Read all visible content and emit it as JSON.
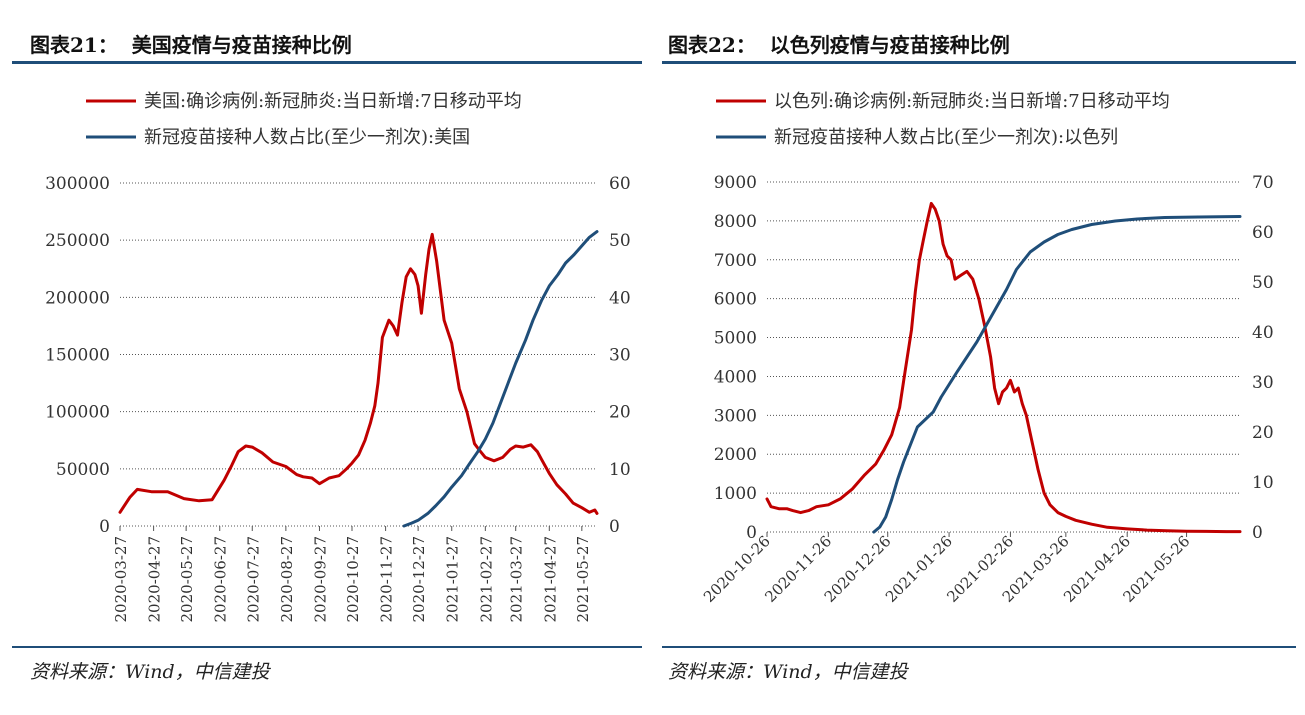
{
  "colors": {
    "case_line": "#c00000",
    "vaccine_line": "#1f4e79",
    "rule": "#1f4e79"
  },
  "left": {
    "title": "图表21：  美国疫情与疫苗接种比例",
    "source": "资料来源：Wind，中信建投",
    "chart_data": {
      "type": "line",
      "title": "图表21：  美国疫情与疫苗接种比例",
      "legend_position": "top",
      "grid": "dotted horizontal",
      "ylim_left": [
        0,
        300000
      ],
      "ylim_right": [
        0,
        60
      ],
      "y_ticks_left": [
        "0",
        "50000",
        "100000",
        "150000",
        "200000",
        "250000",
        "300000"
      ],
      "y_ticks_right": [
        "0",
        "10",
        "20",
        "30",
        "40",
        "50",
        "60"
      ],
      "x_ticks": [
        "2020-03-27",
        "2020-04-27",
        "2020-05-27",
        "2020-06-27",
        "2020-07-27",
        "2020-08-27",
        "2020-09-27",
        "2020-10-27",
        "2020-11-27",
        "2020-12-27",
        "2021-01-27",
        "2021-02-27",
        "2021-03-27",
        "2021-04-27",
        "2021-05-27"
      ],
      "x_range": [
        "2020-03-27",
        "2021-06-10"
      ],
      "series": [
        {
          "name": "美国:确诊病例:新冠肺炎:当日新增:7日移动平均",
          "axis": "left",
          "color": "#c00000",
          "x": [
            "2020-03-27",
            "2020-04-05",
            "2020-04-12",
            "2020-04-25",
            "2020-05-10",
            "2020-05-25",
            "2020-06-08",
            "2020-06-20",
            "2020-07-01",
            "2020-07-08",
            "2020-07-14",
            "2020-07-21",
            "2020-07-27",
            "2020-08-05",
            "2020-08-15",
            "2020-08-27",
            "2020-09-06",
            "2020-09-12",
            "2020-09-20",
            "2020-09-27",
            "2020-10-06",
            "2020-10-15",
            "2020-10-22",
            "2020-10-27",
            "2020-11-02",
            "2020-11-08",
            "2020-11-13",
            "2020-11-17",
            "2020-11-20",
            "2020-11-22",
            "2020-11-24",
            "2020-11-30",
            "2020-12-04",
            "2020-12-08",
            "2020-12-12",
            "2020-12-16",
            "2020-12-20",
            "2020-12-24",
            "2020-12-27",
            "2020-12-30",
            "2021-01-03",
            "2021-01-06",
            "2021-01-09",
            "2021-01-13",
            "2021-01-20",
            "2021-01-27",
            "2021-02-03",
            "2021-02-10",
            "2021-02-17",
            "2021-02-21",
            "2021-02-27",
            "2021-03-07",
            "2021-03-15",
            "2021-03-22",
            "2021-03-27",
            "2021-04-03",
            "2021-04-10",
            "2021-04-16",
            "2021-04-20",
            "2021-04-27",
            "2021-05-04",
            "2021-05-12",
            "2021-05-19",
            "2021-05-27",
            "2021-06-03",
            "2021-06-08",
            "2021-06-10"
          ],
          "values": [
            12000,
            25000,
            32000,
            30000,
            30000,
            24000,
            22000,
            23000,
            40000,
            53000,
            65000,
            70000,
            69000,
            64000,
            56000,
            52000,
            45000,
            43000,
            42000,
            37000,
            42000,
            44000,
            50000,
            55000,
            62000,
            75000,
            90000,
            105000,
            125000,
            145000,
            165000,
            180000,
            175000,
            167000,
            195000,
            218000,
            225000,
            220000,
            210000,
            186000,
            220000,
            242000,
            255000,
            232000,
            180000,
            160000,
            120000,
            100000,
            72000,
            67000,
            60000,
            57000,
            60000,
            67000,
            70000,
            69000,
            71000,
            65000,
            58000,
            46000,
            36000,
            28000,
            20000,
            16000,
            12000,
            14000,
            11000
          ]
        },
        {
          "name": "新冠疫苗接种人数占比(至少一剂次):美国",
          "axis": "right",
          "color": "#1f4e79",
          "x": [
            "2020-12-14",
            "2020-12-21",
            "2020-12-27",
            "2021-01-05",
            "2021-01-12",
            "2021-01-20",
            "2021-01-27",
            "2021-02-05",
            "2021-02-12",
            "2021-02-20",
            "2021-02-27",
            "2021-03-06",
            "2021-03-13",
            "2021-03-20",
            "2021-03-27",
            "2021-04-05",
            "2021-04-12",
            "2021-04-20",
            "2021-04-27",
            "2021-05-05",
            "2021-05-12",
            "2021-05-20",
            "2021-05-27",
            "2021-06-03",
            "2021-06-10"
          ],
          "values": [
            0,
            0.5,
            1,
            2.2,
            3.5,
            5.1,
            6.8,
            8.8,
            10.8,
            13,
            15.2,
            18,
            21.5,
            25,
            28.5,
            32.5,
            36,
            39.5,
            42,
            44,
            46,
            47.5,
            49,
            50.5,
            51.5
          ]
        }
      ]
    }
  },
  "right": {
    "title": "图表22：  以色列疫情与疫苗接种比例",
    "source": "资料来源：Wind，中信建投",
    "chart_data": {
      "type": "line",
      "title": "图表22：  以色列疫情与疫苗接种比例",
      "legend_position": "top",
      "grid": "dotted horizontal",
      "ylim_left": [
        0,
        9000
      ],
      "ylim_right": [
        0,
        70
      ],
      "y_ticks_left": [
        "0",
        "1000",
        "2000",
        "3000",
        "4000",
        "5000",
        "6000",
        "7000",
        "8000",
        "9000"
      ],
      "y_ticks_right": [
        "0",
        "10",
        "20",
        "30",
        "40",
        "50",
        "60",
        "70"
      ],
      "x_ticks": [
        "2020-10-26",
        "2020-11-26",
        "2020-12-26",
        "2021-01-26",
        "2021-02-26",
        "2021-03-26",
        "2021-04-26",
        "2021-05-26"
      ],
      "x_range": [
        "2020-10-26",
        "2021-06-22"
      ],
      "series": [
        {
          "name": "以色列:确诊病例:新冠肺炎:当日新增:7日移动平均",
          "axis": "left",
          "color": "#c00000",
          "x": [
            "2020-10-26",
            "2020-10-28",
            "2020-11-01",
            "2020-11-05",
            "2020-11-08",
            "2020-11-12",
            "2020-11-16",
            "2020-11-20",
            "2020-11-26",
            "2020-12-02",
            "2020-12-08",
            "2020-12-14",
            "2020-12-20",
            "2020-12-24",
            "2020-12-28",
            "2021-01-01",
            "2021-01-04",
            "2021-01-07",
            "2021-01-09",
            "2021-01-11",
            "2021-01-13",
            "2021-01-15",
            "2021-01-17",
            "2021-01-19",
            "2021-01-21",
            "2021-01-23",
            "2021-01-25",
            "2021-01-27",
            "2021-01-29",
            "2021-02-01",
            "2021-02-04",
            "2021-02-07",
            "2021-02-10",
            "2021-02-13",
            "2021-02-16",
            "2021-02-18",
            "2021-02-20",
            "2021-02-22",
            "2021-02-24",
            "2021-02-26",
            "2021-02-28",
            "2021-03-02",
            "2021-03-04",
            "2021-03-06",
            "2021-03-09",
            "2021-03-12",
            "2021-03-15",
            "2021-03-18",
            "2021-03-22",
            "2021-03-26",
            "2021-03-31",
            "2021-04-08",
            "2021-04-16",
            "2021-04-26",
            "2021-05-06",
            "2021-05-16",
            "2021-05-26",
            "2021-06-05",
            "2021-06-15",
            "2021-06-22"
          ],
          "values": [
            850,
            650,
            600,
            600,
            550,
            500,
            550,
            650,
            700,
            850,
            1100,
            1450,
            1750,
            2100,
            2500,
            3200,
            4200,
            5200,
            6200,
            7000,
            7500,
            8000,
            8450,
            8300,
            8000,
            7400,
            7100,
            7000,
            6500,
            6600,
            6700,
            6500,
            6000,
            5300,
            4500,
            3700,
            3300,
            3600,
            3700,
            3900,
            3600,
            3700,
            3300,
            3000,
            2300,
            1600,
            1000,
            700,
            500,
            400,
            300,
            200,
            120,
            80,
            50,
            30,
            20,
            15,
            10,
            10
          ]
        },
        {
          "name": "新冠疫苗接种人数占比(至少一剂次):以色列",
          "axis": "right",
          "color": "#1f4e79",
          "x": [
            "2020-12-19",
            "2020-12-22",
            "2020-12-25",
            "2020-12-28",
            "2020-12-31",
            "2021-01-03",
            "2021-01-07",
            "2021-01-10",
            "2021-01-14",
            "2021-01-18",
            "2021-01-22",
            "2021-01-26",
            "2021-01-30",
            "2021-02-04",
            "2021-02-09",
            "2021-02-14",
            "2021-02-19",
            "2021-02-24",
            "2021-03-01",
            "2021-03-08",
            "2021-03-15",
            "2021-03-22",
            "2021-03-29",
            "2021-04-08",
            "2021-04-20",
            "2021-05-01",
            "2021-05-15",
            "2021-06-01",
            "2021-06-22"
          ],
          "values": [
            0,
            1,
            3,
            6.5,
            10.5,
            14,
            18,
            21,
            22.5,
            24,
            27,
            29.5,
            32,
            35,
            38,
            41.5,
            45,
            48.5,
            52.5,
            56,
            58,
            59.5,
            60.5,
            61.5,
            62.2,
            62.6,
            62.9,
            63,
            63.1
          ]
        }
      ]
    }
  }
}
